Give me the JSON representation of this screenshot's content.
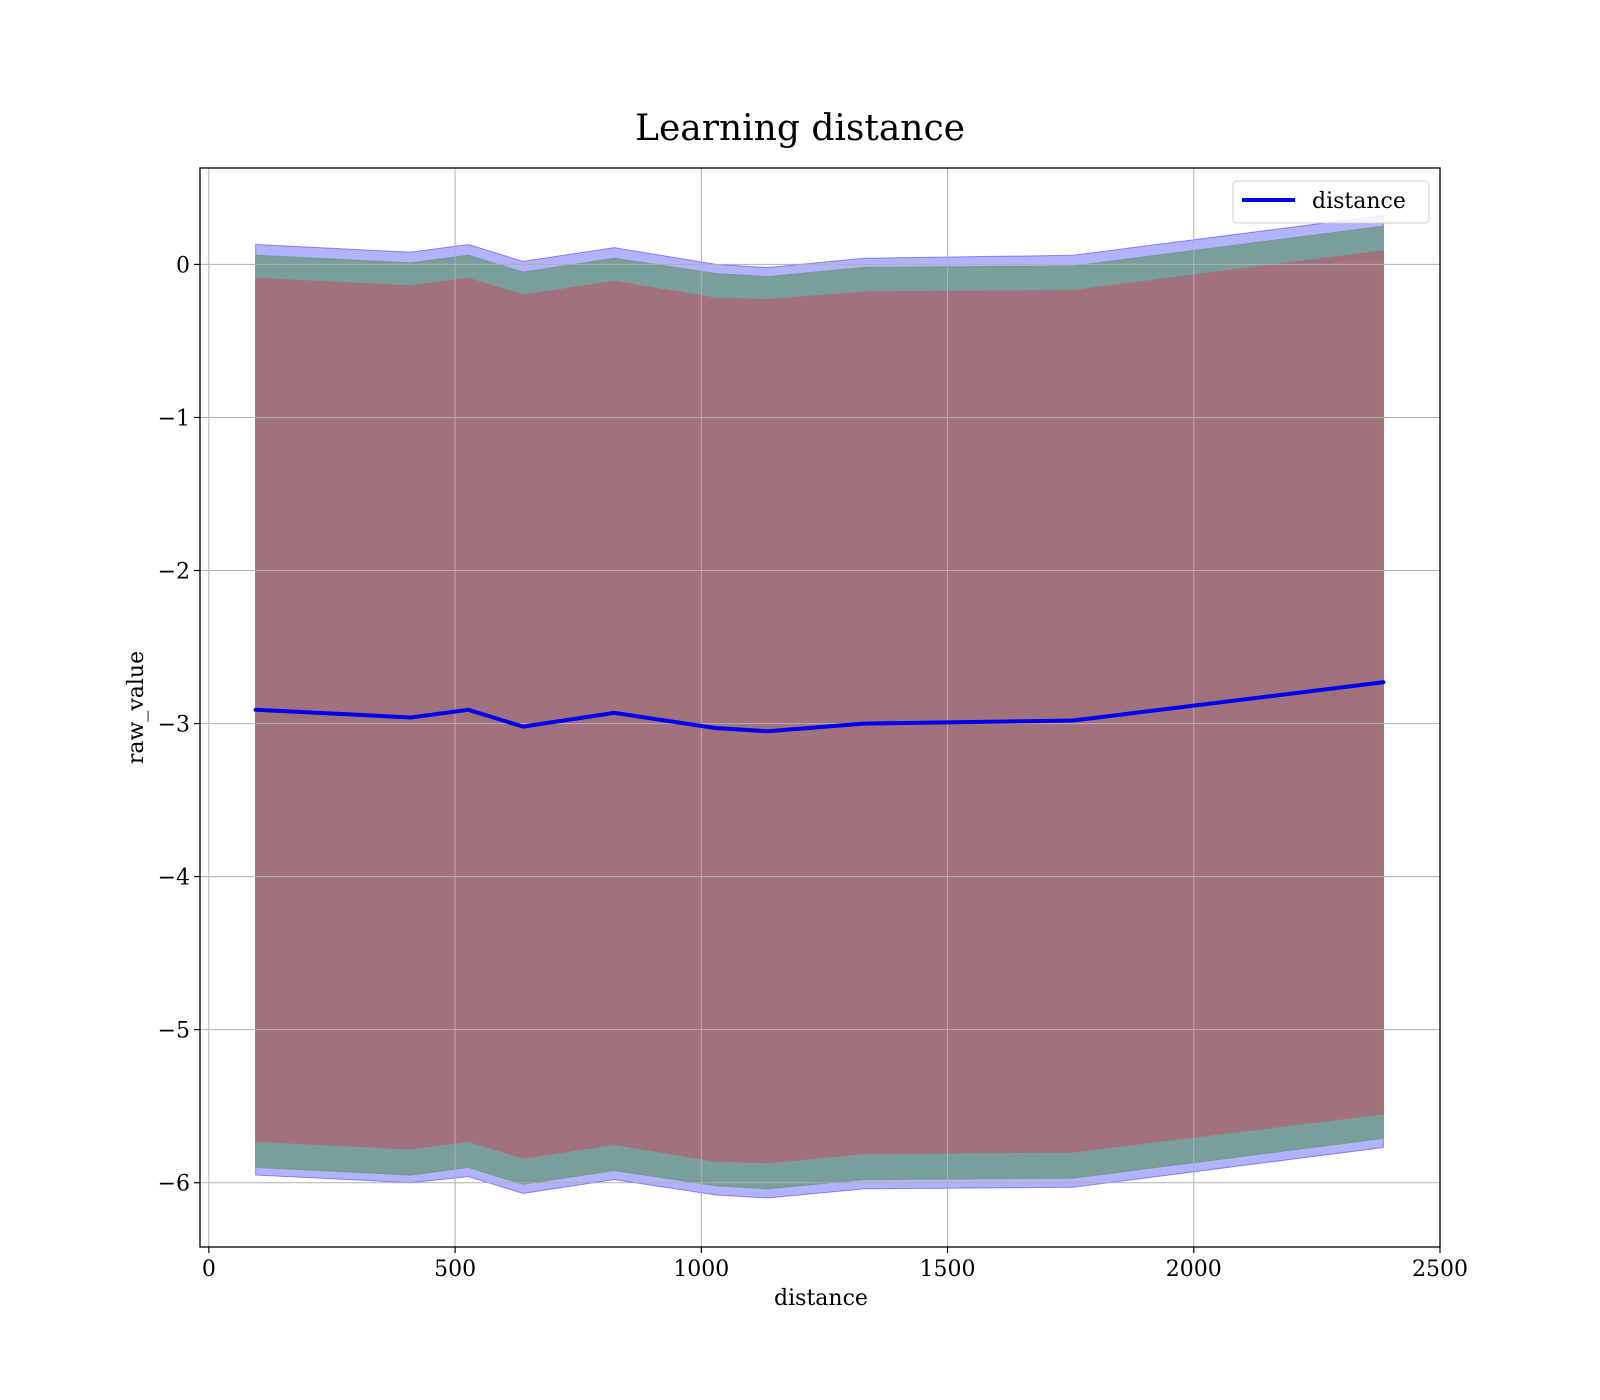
{
  "chart_data": {
    "type": "line",
    "title": "Learning distance",
    "xlabel": "distance",
    "ylabel": "raw_value",
    "xlim": [
      -18,
      2500
    ],
    "ylim": [
      -6.42,
      0.63
    ],
    "xticks": [
      0,
      500,
      1000,
      1500,
      2000,
      2500
    ],
    "xtick_labels": [
      "0",
      "500",
      "1000",
      "1500",
      "2000",
      "2500"
    ],
    "yticks": [
      0,
      -1,
      -2,
      -3,
      -4,
      -5,
      -6
    ],
    "ytick_labels": [
      "0",
      "−1",
      "−2",
      "−3",
      "−4",
      "−5",
      "−6"
    ],
    "grid": true,
    "legend_position": "top-right",
    "x": [
      95,
      410,
      527,
      638,
      823,
      1030,
      1135,
      1330,
      1755,
      2385
    ],
    "series": [
      {
        "name": "distance",
        "kind": "line",
        "color": "#0000ee",
        "values": [
          -2.91,
          -2.96,
          -2.91,
          -3.02,
          -2.93,
          -3.03,
          -3.05,
          -3.0,
          -2.98,
          -2.73
        ]
      }
    ],
    "bands": [
      {
        "color": "#0000ff",
        "opacity": 0.3,
        "upper": [
          0.13,
          0.08,
          0.13,
          0.02,
          0.11,
          0.0,
          -0.02,
          0.04,
          0.06,
          0.32
        ],
        "lower": [
          -5.95,
          -6.0,
          -5.96,
          -6.07,
          -5.98,
          -6.08,
          -6.1,
          -6.04,
          -6.03,
          -5.77
        ]
      },
      {
        "color": "#6f9b8a",
        "opacity": 0.85,
        "upper": [
          0.06,
          0.01,
          0.06,
          -0.05,
          0.04,
          -0.06,
          -0.08,
          -0.02,
          -0.01,
          0.25
        ],
        "lower": [
          -5.9,
          -5.95,
          -5.9,
          -6.01,
          -5.92,
          -6.02,
          -6.04,
          -5.98,
          -5.97,
          -5.71
        ]
      },
      {
        "color": "#a1727b",
        "opacity": 1.0,
        "upper": [
          -0.09,
          -0.14,
          -0.09,
          -0.2,
          -0.11,
          -0.22,
          -0.23,
          -0.18,
          -0.17,
          0.09
        ],
        "lower": [
          -5.73,
          -5.78,
          -5.73,
          -5.84,
          -5.75,
          -5.86,
          -5.87,
          -5.81,
          -5.8,
          -5.55
        ]
      }
    ]
  }
}
